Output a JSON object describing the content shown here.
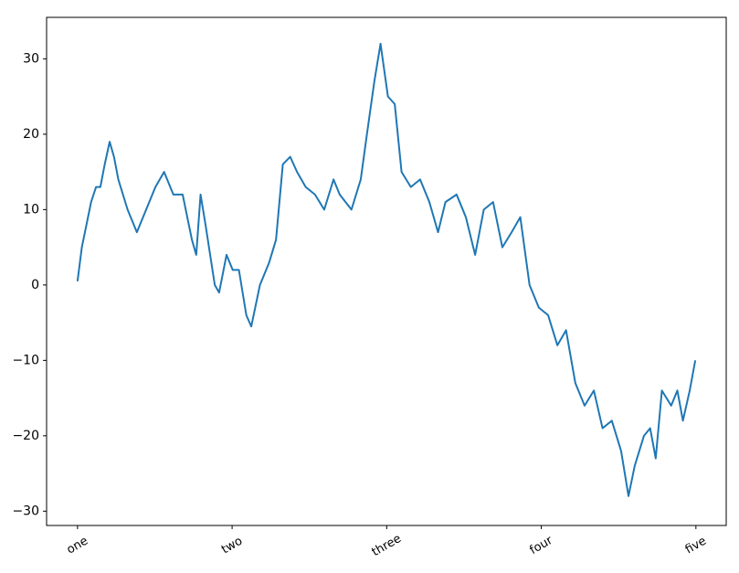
{
  "chart_data": {
    "type": "line",
    "color": "#1f77b4",
    "x": [
      0,
      7,
      22,
      30,
      37,
      44,
      52,
      59,
      66,
      81,
      96,
      111,
      126,
      140,
      155,
      170,
      185,
      192,
      199,
      207,
      222,
      229,
      241,
      251,
      261,
      273,
      281,
      295,
      310,
      321,
      332,
      344,
      355,
      369,
      384,
      399,
      414,
      424,
      443,
      458,
      468,
      480,
      490,
      502,
      513,
      524,
      539,
      554,
      569,
      583,
      595,
      613,
      628,
      643,
      657,
      672,
      687,
      702,
      716,
      731,
      746,
      761,
      776,
      790,
      805,
      820,
      835,
      849,
      864,
      879,
      891,
      901,
      916,
      926,
      935,
      945,
      960,
      970,
      979,
      990,
      999
    ],
    "values": [
      0.5,
      5,
      11,
      13,
      13,
      16,
      19,
      17,
      14,
      10,
      7,
      10,
      13,
      15,
      12,
      12,
      6,
      4,
      12,
      8,
      0,
      -1,
      4,
      2,
      2,
      -4,
      -5.5,
      0,
      3,
      6,
      16,
      17,
      15,
      13,
      12,
      10,
      14,
      12,
      10,
      14,
      20,
      27,
      32,
      25,
      24,
      15,
      13,
      14,
      11,
      7,
      11,
      12,
      9,
      4,
      10,
      11,
      5,
      7,
      9,
      0,
      -3,
      -4,
      -8,
      -6,
      -13,
      -16,
      -14,
      -19,
      -18,
      -22,
      -28,
      -24,
      -20,
      -19,
      -23,
      -14,
      -16,
      -14,
      -18,
      -14,
      -10
    ],
    "xlim": [
      -50,
      1049
    ],
    "xticks": [
      {
        "value": 0,
        "label": "one"
      },
      {
        "value": 250,
        "label": "two"
      },
      {
        "value": 500,
        "label": "three"
      },
      {
        "value": 750,
        "label": "four"
      },
      {
        "value": 1000,
        "label": "five"
      }
    ],
    "ylim": [
      -31.9,
      35.5
    ],
    "yticks": [
      {
        "value": -30,
        "label": "−30"
      },
      {
        "value": -20,
        "label": "−20"
      },
      {
        "value": -10,
        "label": "−10"
      },
      0,
      10,
      20,
      30
    ],
    "grid": false
  }
}
